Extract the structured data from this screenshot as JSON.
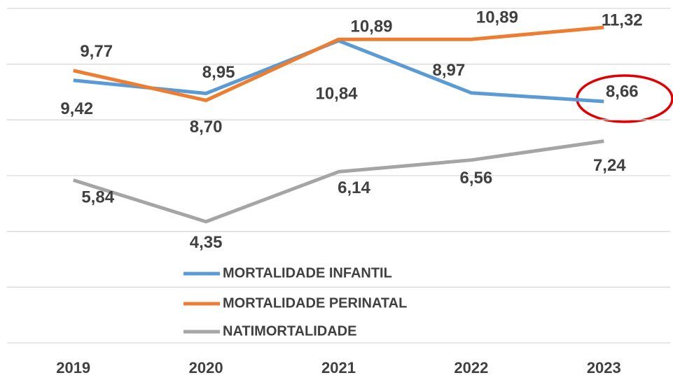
{
  "chart_data": {
    "type": "line",
    "categories": [
      "2019",
      "2020",
      "2021",
      "2022",
      "2023"
    ],
    "series": [
      {
        "name": "MORTALIDADE INFANTIL",
        "color": "#5b9bd5",
        "values": [
          9.42,
          8.95,
          10.84,
          8.97,
          8.66
        ],
        "value_labels": [
          "9,42",
          "8,95",
          "10,84",
          "8,97",
          "8,66"
        ]
      },
      {
        "name": "MORTALIDADE PERINATAL",
        "color": "#ed7d31",
        "values": [
          9.77,
          8.7,
          10.89,
          10.89,
          11.32
        ],
        "value_labels": [
          "9,77",
          "8,70",
          "10,89",
          "10,89",
          "11,32"
        ]
      },
      {
        "name": "NATIMORTALIDADE",
        "color": "#a5a5a5",
        "values": [
          5.84,
          4.35,
          6.14,
          6.56,
          7.24
        ],
        "value_labels": [
          "5,84",
          "4,35",
          "6,14",
          "6,56",
          "7,24"
        ]
      }
    ],
    "ylim": [
      0,
      12
    ],
    "yticks": [
      0,
      2,
      4,
      6,
      8,
      10,
      12
    ],
    "grid": true
  }
}
